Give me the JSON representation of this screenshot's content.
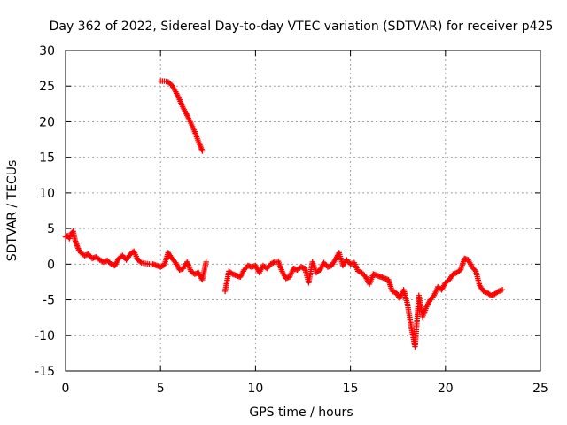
{
  "chart_data": {
    "type": "scatter",
    "title": "Day 362 of 2022, Sidereal Day-to-day VTEC variation (SDTVAR) for receiver p425",
    "xlabel": "GPS time / hours",
    "ylabel": "SDTVAR / TECUs",
    "xlim": [
      0,
      25
    ],
    "ylim": [
      -15,
      30
    ],
    "xticks": [
      0,
      5,
      10,
      15,
      20,
      25
    ],
    "yticks": [
      -15,
      -10,
      -5,
      0,
      5,
      10,
      15,
      20,
      25,
      30
    ],
    "grid": true,
    "marker": "plus",
    "colors": {
      "series": "#ff0000",
      "axis": "#000000",
      "grid": "#a0a0a0"
    },
    "series": [
      {
        "name": "SDTVAR",
        "segments": [
          {
            "x": [
              0.0,
              0.1,
              0.2,
              0.3,
              0.4,
              0.5,
              0.6,
              0.7,
              0.8,
              1.0,
              1.2,
              1.4,
              1.6,
              1.8,
              2.0,
              2.2,
              2.4,
              2.6,
              2.8,
              3.0,
              3.2,
              3.4,
              3.6,
              3.8,
              4.0,
              4.2,
              4.4,
              4.6,
              4.8,
              5.0,
              5.2,
              5.4,
              5.6,
              5.8,
              6.0,
              6.2,
              6.4,
              6.6,
              6.8,
              7.0,
              7.2,
              7.4
            ],
            "y": [
              3.8,
              4.0,
              3.6,
              4.3,
              4.6,
              3.4,
              2.6,
              2.0,
              1.6,
              1.2,
              1.4,
              0.8,
              1.0,
              0.6,
              0.3,
              0.5,
              0.0,
              -0.2,
              0.8,
              1.2,
              0.6,
              1.4,
              1.8,
              0.6,
              0.2,
              0.1,
              0.0,
              0.0,
              -0.2,
              -0.4,
              -0.1,
              1.6,
              0.8,
              0.2,
              -0.8,
              -0.6,
              0.3,
              -1.0,
              -1.4,
              -1.2,
              -2.2,
              0.3
            ]
          },
          {
            "x": [
              5.0,
              5.2,
              5.4,
              5.6,
              5.8,
              6.0,
              6.2,
              6.4,
              6.6,
              6.8,
              7.0,
              7.2
            ],
            "y": [
              25.7,
              25.7,
              25.6,
              25.1,
              24.2,
              23.1,
              21.9,
              20.9,
              19.8,
              18.6,
              17.2,
              15.9
            ]
          },
          {
            "x": [
              8.4,
              8.6,
              8.8,
              9.0,
              9.2,
              9.4,
              9.6,
              9.8,
              10.0,
              10.2,
              10.4,
              10.6,
              10.8,
              11.0,
              11.2,
              11.4,
              11.6,
              11.8,
              12.0,
              12.2,
              12.4,
              12.6,
              12.8,
              13.0,
              13.2,
              13.4,
              13.6,
              13.8,
              14.0,
              14.2,
              14.4,
              14.6,
              14.8,
              15.0,
              15.2,
              15.4,
              15.6,
              15.8,
              16.0,
              16.2,
              16.4,
              16.6,
              16.8,
              17.0,
              17.2,
              17.4,
              17.6,
              17.8,
              18.0,
              18.2,
              18.4,
              18.6,
              18.8,
              19.0,
              19.2,
              19.4,
              19.6,
              19.8,
              20.0,
              20.2,
              20.4,
              20.6,
              20.8,
              21.0,
              21.2,
              21.4,
              21.6,
              21.8,
              22.0,
              22.2,
              22.4,
              22.6,
              22.8,
              23.0
            ],
            "y": [
              -3.8,
              -1.0,
              -1.4,
              -1.6,
              -1.8,
              -0.8,
              -0.2,
              -0.4,
              -0.2,
              -1.2,
              -0.2,
              -0.6,
              0.0,
              0.3,
              0.4,
              -1.0,
              -2.0,
              -1.8,
              -0.6,
              -0.8,
              -0.4,
              -0.6,
              -2.6,
              0.3,
              -1.2,
              -0.8,
              0.2,
              -0.4,
              -0.2,
              0.6,
              1.6,
              -0.2,
              0.6,
              0.0,
              0.2,
              -1.0,
              -1.2,
              -1.8,
              -2.8,
              -1.4,
              -1.6,
              -1.8,
              -2.0,
              -2.2,
              -3.8,
              -4.0,
              -4.8,
              -3.6,
              -5.6,
              -8.8,
              -11.6,
              -4.4,
              -7.4,
              -6.0,
              -5.0,
              -4.4,
              -3.2,
              -3.6,
              -2.6,
              -2.2,
              -1.4,
              -1.2,
              -0.8,
              0.8,
              0.6,
              -0.4,
              -1.0,
              -3.0,
              -3.8,
              -4.0,
              -4.4,
              -4.2,
              -3.8,
              -3.6
            ]
          }
        ]
      }
    ]
  }
}
